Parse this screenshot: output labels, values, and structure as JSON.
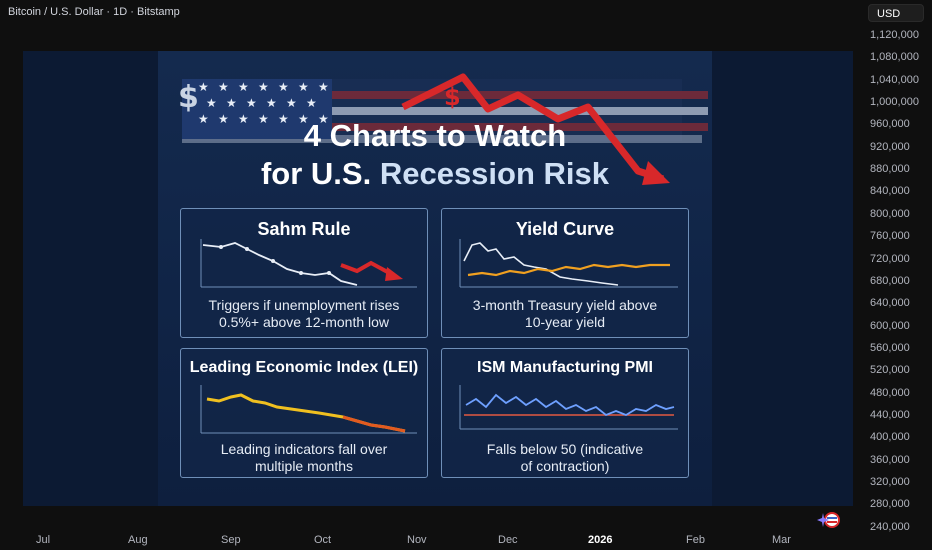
{
  "header": {
    "title": "Bitcoin / U.S. Dollar · 1D · Bitstamp"
  },
  "currency": {
    "label": "USD"
  },
  "price_axis": [
    "1,120,000",
    "1,080,000",
    "1,040,000",
    "1,000,000",
    "960,000",
    "920,000",
    "880,000",
    "840,000",
    "800,000",
    "760,000",
    "720,000",
    "680,000",
    "640,000",
    "600,000",
    "560,000",
    "520,000",
    "480,000",
    "440,000",
    "400,000",
    "360,000",
    "320,000",
    "280,000",
    "240,000"
  ],
  "time_axis": [
    "Jul",
    "Aug",
    "Sep",
    "Oct",
    "Nov",
    "Dec",
    "2026",
    "Feb",
    "Mar"
  ],
  "infographic": {
    "title_line1": "4 Charts to Watch",
    "title_line2_prefix": "for U.S. ",
    "title_line2_highlight": "Recession Risk",
    "cards": [
      {
        "title": "Sahm Rule",
        "desc_line1": "Triggers if unemployment rises",
        "desc_line2": "0.5%+ above 12-month low"
      },
      {
        "title": "Yield Curve",
        "desc_line1": "3-month Treasury yield above",
        "desc_line2": "10-year yield"
      },
      {
        "title": "Leading Economic Index (LEI)",
        "desc_line1": "Leading indicators fall over",
        "desc_line2": "multiple months"
      },
      {
        "title": "ISM Manufacturing PMI",
        "desc_line1": "Falls below 50 (indicative",
        "desc_line2": "of contraction)"
      }
    ]
  },
  "colors": {
    "accent_red": "#d8282a",
    "accent_orange": "#f0a020",
    "line_blue": "#6ea0ff"
  }
}
